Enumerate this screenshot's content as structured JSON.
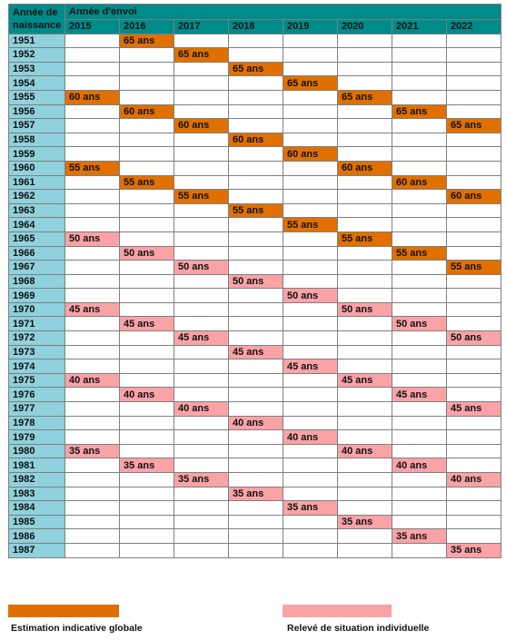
{
  "header": {
    "birth_label_line1": "Année de",
    "birth_label_line2": "naissance",
    "send_label": "Année d'envoi"
  },
  "years": [
    "2015",
    "2016",
    "2017",
    "2018",
    "2019",
    "2020",
    "2021",
    "2022"
  ],
  "colors": {
    "teal": "#008b8b",
    "birth_cell": "#8fd1dc",
    "orange": "#e07000",
    "pink": "#f9a3a7"
  },
  "rows": [
    {
      "birth": "1951",
      "cells": [
        "",
        "65 ans",
        "",
        "",
        "",
        "",
        "",
        ""
      ],
      "kinds": [
        "",
        "o",
        "",
        "",
        "",
        "",
        "",
        ""
      ]
    },
    {
      "birth": "1952",
      "cells": [
        "",
        "",
        "65 ans",
        "",
        "",
        "",
        "",
        ""
      ],
      "kinds": [
        "",
        "",
        "o",
        "",
        "",
        "",
        "",
        ""
      ]
    },
    {
      "birth": "1953",
      "cells": [
        "",
        "",
        "",
        "65 ans",
        "",
        "",
        "",
        ""
      ],
      "kinds": [
        "",
        "",
        "",
        "o",
        "",
        "",
        "",
        ""
      ]
    },
    {
      "birth": "1954",
      "cells": [
        "",
        "",
        "",
        "",
        "65 ans",
        "",
        "",
        ""
      ],
      "kinds": [
        "",
        "",
        "",
        "",
        "o",
        "",
        "",
        ""
      ]
    },
    {
      "birth": "1955",
      "cells": [
        "60 ans",
        "",
        "",
        "",
        "",
        "65 ans",
        "",
        ""
      ],
      "kinds": [
        "o",
        "",
        "",
        "",
        "",
        "o",
        "",
        ""
      ]
    },
    {
      "birth": "1956",
      "cells": [
        "",
        "60 ans",
        "",
        "",
        "",
        "",
        "65 ans",
        ""
      ],
      "kinds": [
        "",
        "o",
        "",
        "",
        "",
        "",
        "o",
        ""
      ]
    },
    {
      "birth": "1957",
      "cells": [
        "",
        "",
        "60 ans",
        "",
        "",
        "",
        "",
        "65 ans"
      ],
      "kinds": [
        "",
        "",
        "o",
        "",
        "",
        "",
        "",
        "o"
      ]
    },
    {
      "birth": "1958",
      "cells": [
        "",
        "",
        "",
        "60 ans",
        "",
        "",
        "",
        ""
      ],
      "kinds": [
        "",
        "",
        "",
        "o",
        "",
        "",
        "",
        ""
      ]
    },
    {
      "birth": "1959",
      "cells": [
        "",
        "",
        "",
        "",
        "60 ans",
        "",
        "",
        ""
      ],
      "kinds": [
        "",
        "",
        "",
        "",
        "o",
        "",
        "",
        ""
      ]
    },
    {
      "birth": "1960",
      "cells": [
        "55 ans",
        "",
        "",
        "",
        "",
        "60 ans",
        "",
        ""
      ],
      "kinds": [
        "o",
        "",
        "",
        "",
        "",
        "o",
        "",
        ""
      ]
    },
    {
      "birth": "1961",
      "cells": [
        "",
        "55 ans",
        "",
        "",
        "",
        "",
        "60 ans",
        ""
      ],
      "kinds": [
        "",
        "o",
        "",
        "",
        "",
        "",
        "o",
        ""
      ]
    },
    {
      "birth": "1962",
      "cells": [
        "",
        "",
        "55 ans",
        "",
        "",
        "",
        "",
        "60 ans"
      ],
      "kinds": [
        "",
        "",
        "o",
        "",
        "",
        "",
        "",
        "o"
      ]
    },
    {
      "birth": "1963",
      "cells": [
        "",
        "",
        "",
        "55 ans",
        "",
        "",
        "",
        ""
      ],
      "kinds": [
        "",
        "",
        "",
        "o",
        "",
        "",
        "",
        ""
      ]
    },
    {
      "birth": "1964",
      "cells": [
        "",
        "",
        "",
        "",
        "55 ans",
        "",
        "",
        ""
      ],
      "kinds": [
        "",
        "",
        "",
        "",
        "o",
        "",
        "",
        ""
      ]
    },
    {
      "birth": "1965",
      "cells": [
        "50 ans",
        "",
        "",
        "",
        "",
        "55 ans",
        "",
        ""
      ],
      "kinds": [
        "p",
        "",
        "",
        "",
        "",
        "o",
        "",
        ""
      ]
    },
    {
      "birth": "1966",
      "cells": [
        "",
        "50 ans",
        "",
        "",
        "",
        "",
        "55 ans",
        ""
      ],
      "kinds": [
        "",
        "p",
        "",
        "",
        "",
        "",
        "o",
        ""
      ]
    },
    {
      "birth": "1967",
      "cells": [
        "",
        "",
        "50 ans",
        "",
        "",
        "",
        "",
        "55 ans"
      ],
      "kinds": [
        "",
        "",
        "p",
        "",
        "",
        "",
        "",
        "o"
      ]
    },
    {
      "birth": "1968",
      "cells": [
        "",
        "",
        "",
        "50 ans",
        "",
        "",
        "",
        ""
      ],
      "kinds": [
        "",
        "",
        "",
        "p",
        "",
        "",
        "",
        ""
      ]
    },
    {
      "birth": "1969",
      "cells": [
        "",
        "",
        "",
        "",
        "50 ans",
        "",
        "",
        ""
      ],
      "kinds": [
        "",
        "",
        "",
        "",
        "p",
        "",
        "",
        ""
      ]
    },
    {
      "birth": "1970",
      "cells": [
        "45 ans",
        "",
        "",
        "",
        "",
        "50 ans",
        "",
        ""
      ],
      "kinds": [
        "p",
        "",
        "",
        "",
        "",
        "p",
        "",
        ""
      ]
    },
    {
      "birth": "1971",
      "cells": [
        "",
        "45 ans",
        "",
        "",
        "",
        "",
        "50 ans",
        ""
      ],
      "kinds": [
        "",
        "p",
        "",
        "",
        "",
        "",
        "p",
        ""
      ]
    },
    {
      "birth": "1972",
      "cells": [
        "",
        "",
        "45 ans",
        "",
        "",
        "",
        "",
        "50 ans"
      ],
      "kinds": [
        "",
        "",
        "p",
        "",
        "",
        "",
        "",
        "p"
      ]
    },
    {
      "birth": "1973",
      "cells": [
        "",
        "",
        "",
        "45 ans",
        "",
        "",
        "",
        ""
      ],
      "kinds": [
        "",
        "",
        "",
        "p",
        "",
        "",
        "",
        ""
      ]
    },
    {
      "birth": "1974",
      "cells": [
        "",
        "",
        "",
        "",
        "45 ans",
        "",
        "",
        ""
      ],
      "kinds": [
        "",
        "",
        "",
        "",
        "p",
        "",
        "",
        ""
      ]
    },
    {
      "birth": "1975",
      "cells": [
        "40 ans",
        "",
        "",
        "",
        "",
        "45 ans",
        "",
        ""
      ],
      "kinds": [
        "p",
        "",
        "",
        "",
        "",
        "p",
        "",
        ""
      ]
    },
    {
      "birth": "1976",
      "cells": [
        "",
        "40 ans",
        "",
        "",
        "",
        "",
        "45 ans",
        ""
      ],
      "kinds": [
        "",
        "p",
        "",
        "",
        "",
        "",
        "p",
        ""
      ]
    },
    {
      "birth": "1977",
      "cells": [
        "",
        "",
        "40 ans",
        "",
        "",
        "",
        "",
        "45 ans"
      ],
      "kinds": [
        "",
        "",
        "p",
        "",
        "",
        "",
        "",
        "p"
      ]
    },
    {
      "birth": "1978",
      "cells": [
        "",
        "",
        "",
        "40 ans",
        "",
        "",
        "",
        ""
      ],
      "kinds": [
        "",
        "",
        "",
        "p",
        "",
        "",
        "",
        ""
      ]
    },
    {
      "birth": "1979",
      "cells": [
        "",
        "",
        "",
        "",
        "40 ans",
        "",
        "",
        ""
      ],
      "kinds": [
        "",
        "",
        "",
        "",
        "p",
        "",
        "",
        ""
      ]
    },
    {
      "birth": "1980",
      "cells": [
        "35 ans",
        "",
        "",
        "",
        "",
        "40 ans",
        "",
        ""
      ],
      "kinds": [
        "p",
        "",
        "",
        "",
        "",
        "p",
        "",
        ""
      ]
    },
    {
      "birth": "1981",
      "cells": [
        "",
        "35 ans",
        "",
        "",
        "",
        "",
        "40 ans",
        ""
      ],
      "kinds": [
        "",
        "p",
        "",
        "",
        "",
        "",
        "p",
        ""
      ]
    },
    {
      "birth": "1982",
      "cells": [
        "",
        "",
        "35 ans",
        "",
        "",
        "",
        "",
        "40 ans"
      ],
      "kinds": [
        "",
        "",
        "p",
        "",
        "",
        "",
        "",
        "p"
      ]
    },
    {
      "birth": "1983",
      "cells": [
        "",
        "",
        "",
        "35 ans",
        "",
        "",
        "",
        ""
      ],
      "kinds": [
        "",
        "",
        "",
        "p",
        "",
        "",
        "",
        ""
      ]
    },
    {
      "birth": "1984",
      "cells": [
        "",
        "",
        "",
        "",
        "35 ans",
        "",
        "",
        ""
      ],
      "kinds": [
        "",
        "",
        "",
        "",
        "p",
        "",
        "",
        ""
      ]
    },
    {
      "birth": "1985",
      "cells": [
        "",
        "",
        "",
        "",
        "",
        "35 ans",
        "",
        ""
      ],
      "kinds": [
        "",
        "",
        "",
        "",
        "",
        "p",
        "",
        ""
      ]
    },
    {
      "birth": "1986",
      "cells": [
        "",
        "",
        "",
        "",
        "",
        "",
        "35 ans",
        ""
      ],
      "kinds": [
        "",
        "",
        "",
        "",
        "",
        "",
        "p",
        ""
      ]
    },
    {
      "birth": "1987",
      "cells": [
        "",
        "",
        "",
        "",
        "",
        "",
        "",
        "35 ans"
      ],
      "kinds": [
        "",
        "",
        "",
        "",
        "",
        "",
        "",
        "p"
      ]
    }
  ],
  "legend": {
    "orange_label": "Estimation indicative globale",
    "pink_label": "Relevé de situation individuelle"
  }
}
